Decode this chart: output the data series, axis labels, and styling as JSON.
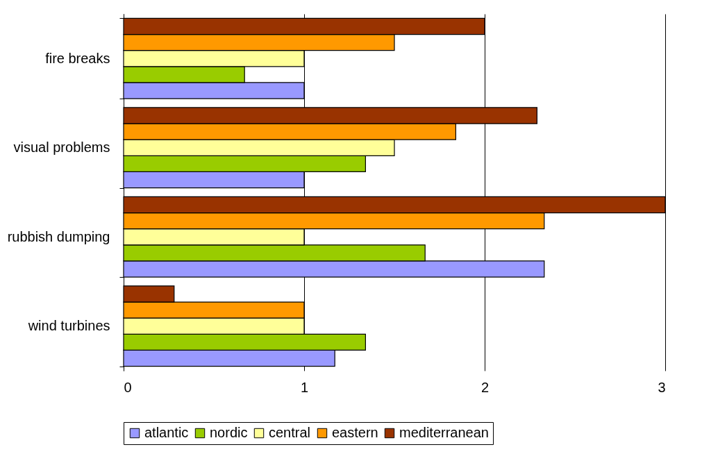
{
  "chart_data": {
    "type": "bar",
    "orientation": "horizontal",
    "categories": [
      "fire breaks",
      "visual problems",
      "rubbish dumping",
      "wind turbines"
    ],
    "series": [
      {
        "name": "atlantic",
        "color": "#9999ff",
        "values": [
          1.0,
          1.0,
          2.33,
          1.17
        ]
      },
      {
        "name": "nordic",
        "color": "#99cc00",
        "values": [
          0.67,
          1.34,
          1.67,
          1.34
        ]
      },
      {
        "name": "central",
        "color": "#ffff99",
        "values": [
          1.0,
          1.5,
          1.0,
          1.0
        ]
      },
      {
        "name": "eastern",
        "color": "#ff9900",
        "values": [
          1.5,
          1.84,
          2.33,
          1.0
        ]
      },
      {
        "name": "mediterranean",
        "color": "#993300",
        "values": [
          2.0,
          2.29,
          3.0,
          0.28
        ]
      }
    ],
    "xlim": [
      0,
      3
    ],
    "xticks": [
      0,
      1,
      2,
      3
    ],
    "grid": "x",
    "legend": "bottom"
  }
}
